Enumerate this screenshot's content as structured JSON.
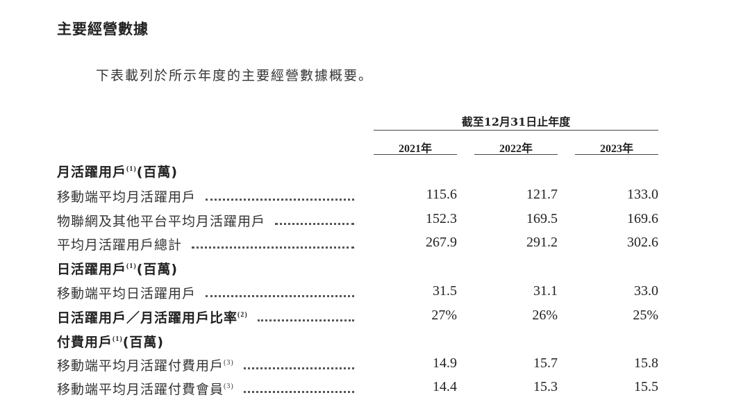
{
  "title": "主要經營數據",
  "intro": "下表載列於所示年度的主要經營數據概要。",
  "table": {
    "period_header": "截至12月31日止年度",
    "years": [
      "2021年",
      "2022年",
      "2023年"
    ],
    "rows": [
      {
        "type": "section",
        "label": "月活躍用戶",
        "note": "(1)",
        "suffix": "(百萬)"
      },
      {
        "type": "data",
        "label": "移動端平均月活躍用戶",
        "note": "",
        "values": [
          "115.6",
          "121.7",
          "133.0"
        ]
      },
      {
        "type": "data",
        "label": "物聯網及其他平台平均月活躍用戶",
        "note": "",
        "values": [
          "152.3",
          "169.5",
          "169.6"
        ]
      },
      {
        "type": "data",
        "label": "平均月活躍用戶總計",
        "note": "",
        "values": [
          "267.9",
          "291.2",
          "302.6"
        ]
      },
      {
        "type": "section",
        "label": "日活躍用戶",
        "note": "(1)",
        "suffix": "(百萬)"
      },
      {
        "type": "data",
        "label": "移動端平均日活躍用戶",
        "note": "",
        "values": [
          "31.5",
          "31.1",
          "33.0"
        ]
      },
      {
        "type": "bold",
        "label": "日活躍用戶／月活躍用戶比率",
        "note": "(2)",
        "values": [
          "27%",
          "26%",
          "25%"
        ]
      },
      {
        "type": "section",
        "label": "付費用戶",
        "note": "(1)",
        "suffix": "(百萬)"
      },
      {
        "type": "data",
        "label": "移動端平均月活躍付費用戶",
        "note": "(3)",
        "values": [
          "14.9",
          "15.7",
          "15.8"
        ]
      },
      {
        "type": "data",
        "label": "移動端平均月活躍付費會員",
        "note": "(3)",
        "values": [
          "14.4",
          "15.3",
          "15.5"
        ]
      }
    ]
  }
}
